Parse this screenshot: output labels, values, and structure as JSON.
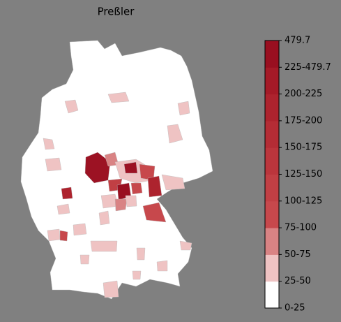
{
  "title": "Preßler",
  "colorbar": {
    "labels": [
      "0-25",
      "25-50",
      "50-75",
      "75-100",
      "100-125",
      "125-150",
      "150-175",
      "175-200",
      "200-225",
      "225-479.7",
      "479.7"
    ],
    "colors": [
      "#ffffff",
      "#efc3c3",
      "#d98384",
      "#c7484c",
      "#c13f44",
      "#bb353c",
      "#b42c35",
      "#ad232e",
      "#a51a27",
      "#990f20"
    ]
  }
}
